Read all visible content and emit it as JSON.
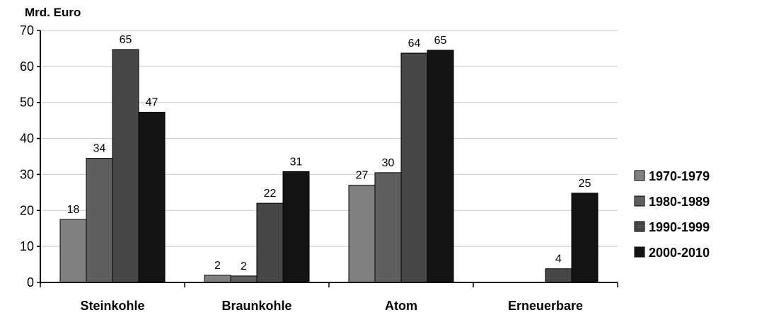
{
  "chart_data": {
    "type": "bar",
    "ylabel": "Mrd. Euro",
    "categories": [
      "Steinkohle",
      "Braunkohle",
      "Atom",
      "Erneuerbare"
    ],
    "ylim": [
      0,
      70
    ],
    "yticks": [
      0,
      10,
      20,
      30,
      40,
      50,
      60,
      70
    ],
    "grid": true,
    "legend_position": "right",
    "series": [
      {
        "name": "1970-1979",
        "color": "#808080",
        "values": [
          17.5,
          2,
          27,
          null
        ],
        "labels": [
          "18",
          "2",
          "27",
          ""
        ]
      },
      {
        "name": "1980-1989",
        "color": "#5f5f5f",
        "values": [
          34.5,
          1.8,
          30.5,
          null
        ],
        "labels": [
          "34",
          "2",
          "30",
          ""
        ]
      },
      {
        "name": "1990-1999",
        "color": "#474747",
        "values": [
          64.7,
          22,
          63.7,
          3.8
        ],
        "labels": [
          "65",
          "22",
          "64",
          "4"
        ]
      },
      {
        "name": "2000-2010",
        "color": "#141414",
        "values": [
          47.3,
          30.8,
          64.5,
          24.8
        ],
        "labels": [
          "47",
          "31",
          "65",
          "25"
        ]
      }
    ]
  }
}
